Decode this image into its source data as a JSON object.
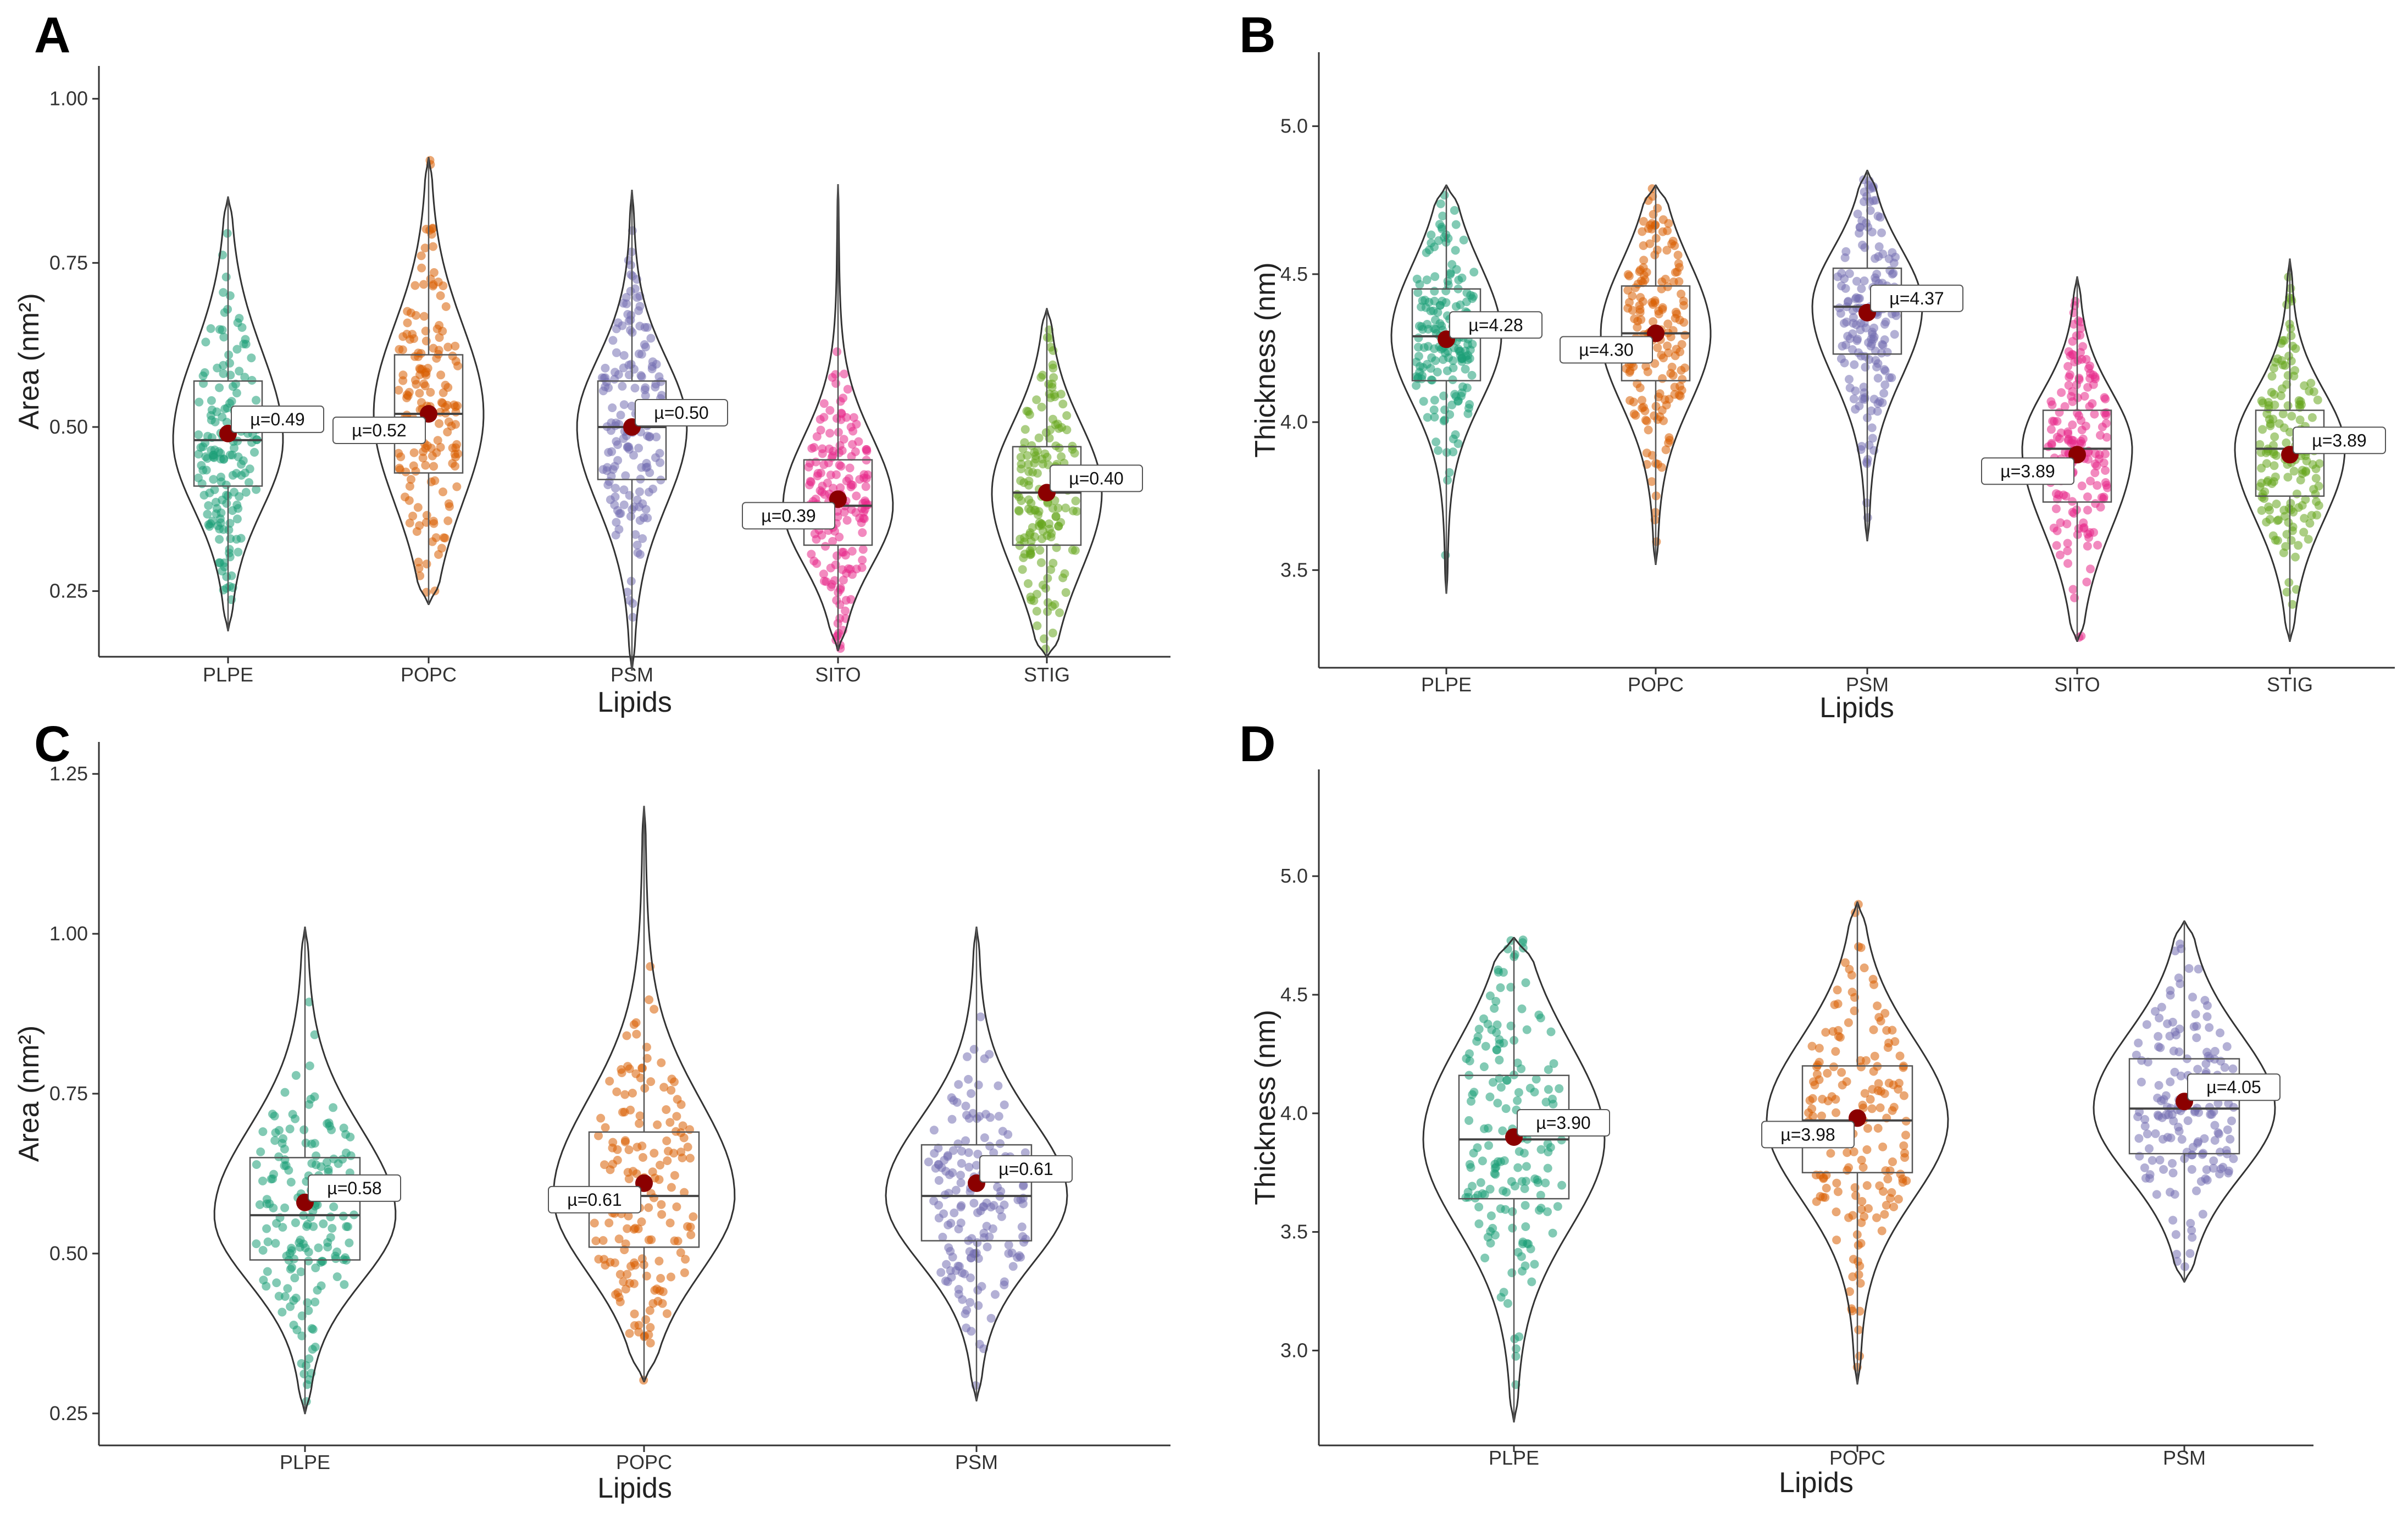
{
  "colors": {
    "PLPE": "#1b9e77",
    "POPC": "#d95f02",
    "PSM": "#7570b3",
    "SITO": "#e7298a",
    "STIG": "#66a61e",
    "mean": "#8b0000"
  },
  "chart_data": [
    {
      "panel": "A",
      "type": "violin",
      "xlabel": "Lipids",
      "ylabel": "Area (nm²)",
      "ylim": [
        0.15,
        1.05
      ],
      "yticks": [
        "0.25",
        "0.50",
        "0.75",
        "1.00"
      ],
      "categories": [
        {
          "name": "PLPE",
          "min": 0.19,
          "max": 0.85,
          "q1": 0.41,
          "median": 0.48,
          "q3": 0.57,
          "mean": 0.49,
          "label": "µ=0.49"
        },
        {
          "name": "POPC",
          "min": 0.23,
          "max": 0.91,
          "q1": 0.43,
          "median": 0.52,
          "q3": 0.61,
          "mean": 0.52,
          "label": "µ=0.52"
        },
        {
          "name": "PSM",
          "min": 0.13,
          "max": 0.86,
          "q1": 0.42,
          "median": 0.5,
          "q3": 0.57,
          "mean": 0.5,
          "label": "µ=0.50"
        },
        {
          "name": "SITO",
          "min": 0.16,
          "max": 0.87,
          "q1": 0.32,
          "median": 0.38,
          "q3": 0.45,
          "mean": 0.39,
          "label": "µ=0.39"
        },
        {
          "name": "STIG",
          "min": 0.15,
          "max": 0.68,
          "q1": 0.32,
          "median": 0.4,
          "q3": 0.47,
          "mean": 0.4,
          "label": "µ=0.40"
        }
      ]
    },
    {
      "panel": "B",
      "type": "violin",
      "xlabel": "Lipids",
      "ylabel": "Thickness (nm)",
      "ylim": [
        3.17,
        5.25
      ],
      "yticks": [
        "3.5",
        "4.0",
        "4.5",
        "5.0"
      ],
      "categories": [
        {
          "name": "PLPE",
          "min": 3.42,
          "max": 4.8,
          "q1": 4.14,
          "median": 4.29,
          "q3": 4.45,
          "mean": 4.28,
          "label": "µ=4.28"
        },
        {
          "name": "POPC",
          "min": 3.52,
          "max": 4.8,
          "q1": 4.14,
          "median": 4.3,
          "q3": 4.46,
          "mean": 4.3,
          "label": "µ=4.30"
        },
        {
          "name": "PSM",
          "min": 3.6,
          "max": 4.85,
          "q1": 4.23,
          "median": 4.39,
          "q3": 4.52,
          "mean": 4.37,
          "label": "µ=4.37"
        },
        {
          "name": "SITO",
          "min": 3.26,
          "max": 4.49,
          "q1": 3.73,
          "median": 3.91,
          "q3": 4.04,
          "mean": 3.89,
          "label": "µ=3.89"
        },
        {
          "name": "STIG",
          "min": 3.26,
          "max": 4.55,
          "q1": 3.75,
          "median": 3.91,
          "q3": 4.04,
          "mean": 3.89,
          "label": "µ=3.89"
        }
      ]
    },
    {
      "panel": "C",
      "type": "violin",
      "xlabel": "Lipids",
      "ylabel": "Area (nm²)",
      "ylim": [
        0.2,
        1.3
      ],
      "yticks": [
        "0.25",
        "0.50",
        "0.75",
        "1.00",
        "1.25"
      ],
      "categories": [
        {
          "name": "PLPE",
          "min": 0.25,
          "max": 1.01,
          "q1": 0.49,
          "median": 0.56,
          "q3": 0.65,
          "mean": 0.58,
          "label": "µ=0.58"
        },
        {
          "name": "POPC",
          "min": 0.3,
          "max": 1.2,
          "q1": 0.51,
          "median": 0.59,
          "q3": 0.69,
          "mean": 0.61,
          "label": "µ=0.61"
        },
        {
          "name": "PSM",
          "min": 0.27,
          "max": 1.01,
          "q1": 0.52,
          "median": 0.59,
          "q3": 0.67,
          "mean": 0.61,
          "label": "µ=0.61"
        }
      ]
    },
    {
      "panel": "D",
      "type": "violin",
      "xlabel": "Lipids",
      "ylabel": "Thickness (nm)",
      "ylim": [
        2.6,
        5.45
      ],
      "yticks": [
        "3.0",
        "3.5",
        "4.0",
        "4.5",
        "5.0"
      ],
      "categories": [
        {
          "name": "PLPE",
          "min": 2.7,
          "max": 4.74,
          "q1": 3.64,
          "median": 3.89,
          "q3": 4.16,
          "mean": 3.9,
          "label": "µ=3.90"
        },
        {
          "name": "POPC",
          "min": 2.86,
          "max": 4.89,
          "q1": 3.75,
          "median": 3.97,
          "q3": 4.2,
          "mean": 3.98,
          "label": "µ=3.98"
        },
        {
          "name": "PSM",
          "min": 3.29,
          "max": 4.81,
          "q1": 3.83,
          "median": 4.02,
          "q3": 4.23,
          "mean": 4.05,
          "label": "µ=4.05"
        }
      ]
    }
  ]
}
